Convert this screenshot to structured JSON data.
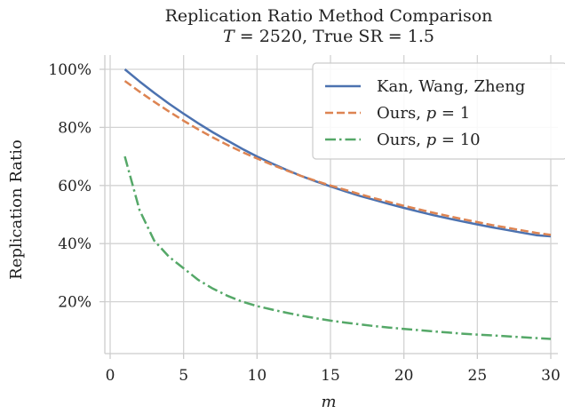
{
  "chart_data": {
    "type": "line",
    "title": "Replication Ratio Method Comparison",
    "subtitle_parts": [
      "T",
      " = 2520, True SR = 1.5"
    ],
    "xlabel": "m",
    "ylabel": "Replication Ratio",
    "xlim": [
      0,
      30
    ],
    "ylim": [
      0,
      100
    ],
    "xticks": [
      0,
      5,
      10,
      15,
      20,
      25,
      30
    ],
    "xtick_labels": [
      "0",
      "5",
      "10",
      "15",
      "20",
      "25",
      "30"
    ],
    "yticks": [
      20,
      40,
      60,
      80,
      100
    ],
    "ytick_labels": [
      "20%",
      "40%",
      "60%",
      "80%",
      "100%"
    ],
    "grid": true,
    "legend_position": "top-right",
    "x": [
      1,
      2,
      3,
      4,
      5,
      6,
      7,
      8,
      9,
      10,
      11,
      12,
      13,
      14,
      15,
      16,
      17,
      18,
      19,
      20,
      21,
      22,
      23,
      24,
      25,
      26,
      27,
      28,
      29,
      30
    ],
    "series": [
      {
        "name": "Kan, Wang, Zheng",
        "color": "#4c72b0",
        "style": "solid",
        "values": [
          100.0,
          95.8,
          91.9,
          88.2,
          84.7,
          81.4,
          78.3,
          75.4,
          72.6,
          70.0,
          67.6,
          65.4,
          63.3,
          61.4,
          59.7,
          58.0,
          56.4,
          55.0,
          53.6,
          52.3,
          51.0,
          49.8,
          48.7,
          47.6,
          46.6,
          45.6,
          44.7,
          43.8,
          42.9,
          42.5
        ]
      },
      {
        "name_parts": [
          "Ours, ",
          "p",
          " = 1"
        ],
        "color": "#dd8452",
        "style": "dashed",
        "values": [
          96.0,
          92.3,
          88.8,
          85.5,
          82.3,
          79.3,
          76.5,
          73.9,
          71.5,
          69.3,
          67.2,
          65.2,
          63.3,
          61.6,
          60.0,
          58.5,
          57.0,
          55.6,
          54.3,
          53.0,
          51.8,
          50.6,
          49.5,
          48.4,
          47.4,
          46.4,
          45.5,
          44.6,
          43.7,
          43.0
        ]
      },
      {
        "name_parts": [
          "Ours, ",
          "p",
          " = 10"
        ],
        "color": "#55a868",
        "style": "dashdot",
        "values": [
          70.0,
          51.5,
          41.0,
          35.5,
          31.5,
          27.5,
          24.5,
          22.0,
          20.0,
          18.5,
          17.3,
          16.2,
          15.2,
          14.3,
          13.5,
          12.8,
          12.2,
          11.6,
          11.1,
          10.6,
          10.2,
          9.8,
          9.4,
          9.0,
          8.7,
          8.4,
          8.1,
          7.8,
          7.5,
          7.2
        ]
      }
    ]
  }
}
